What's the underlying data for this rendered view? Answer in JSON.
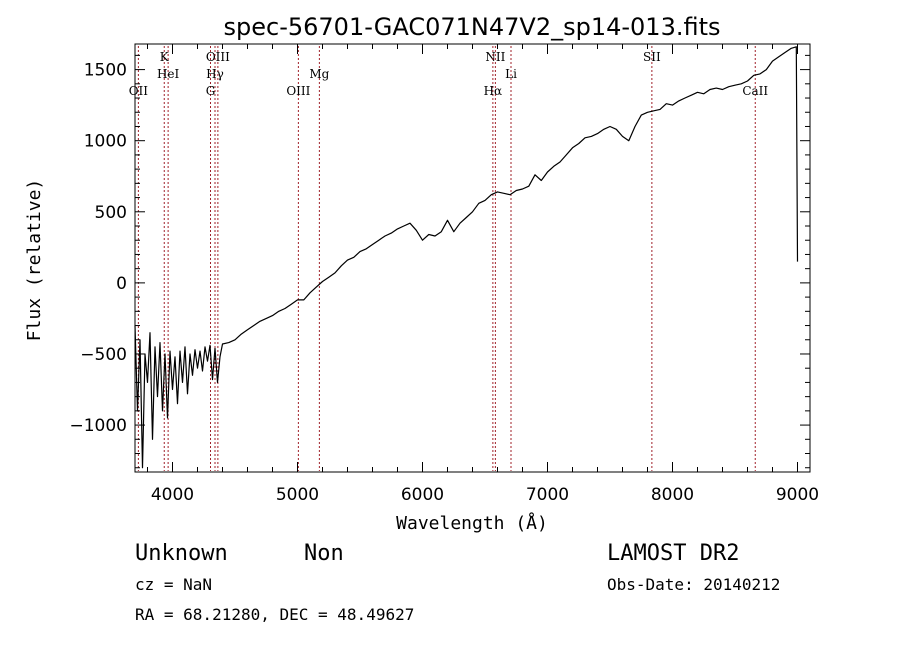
{
  "chart_data": {
    "type": "line",
    "title": "spec-56701-GAC071N47V2_sp14-013.fits",
    "xlabel": "Wavelength (Å)",
    "ylabel": "Flux (relative)",
    "xlim": [
      3700,
      9100
    ],
    "ylim": [
      -1330,
      1680
    ],
    "x_ticks": [
      4000,
      5000,
      6000,
      7000,
      8000,
      9000
    ],
    "y_ticks": [
      -1000,
      -500,
      0,
      500,
      1000,
      1500
    ],
    "x_tick_labels": [
      "4000",
      "5000",
      "6000",
      "7000",
      "8000",
      "9000"
    ],
    "y_tick_labels": [
      "−1000",
      "−500",
      "0",
      "500",
      "1000",
      "1500"
    ],
    "line_color": "#000000",
    "marker_color": "#a0202a",
    "spectral_lines": [
      {
        "label": "OII",
        "x": 3727,
        "row": 3
      },
      {
        "label": "K",
        "x": 3934,
        "row": 1
      },
      {
        "label": "HeI",
        "x": 3965,
        "row": 2
      },
      {
        "label": "OIII",
        "x": 4363,
        "row": 1
      },
      {
        "label": "Hγ",
        "x": 4340,
        "row": 2
      },
      {
        "label": "G",
        "x": 4304,
        "row": 3
      },
      {
        "label": "OIII",
        "x": 5007,
        "row": 3
      },
      {
        "label": "Mg",
        "x": 5175,
        "row": 2
      },
      {
        "label": "NII",
        "x": 6583,
        "row": 1
      },
      {
        "label": "Hα",
        "x": 6563,
        "row": 3
      },
      {
        "label": "Li",
        "x": 6708,
        "row": 2
      },
      {
        "label": "SII",
        "x": 7835,
        "row": 1
      },
      {
        "label": "CaII",
        "x": 8662,
        "row": 3
      }
    ],
    "series": [
      {
        "x": [
          3700,
          3720,
          3740,
          3760,
          3780,
          3800,
          3820,
          3840,
          3860,
          3880,
          3900,
          3920,
          3940,
          3960,
          3980,
          4000,
          4020,
          4040,
          4060,
          4080,
          4100,
          4120,
          4140,
          4160,
          4180,
          4200,
          4220,
          4240,
          4260,
          4280,
          4300,
          4320,
          4340,
          4360,
          4380,
          4400,
          4450,
          4500,
          4550,
          4600,
          4650,
          4700,
          4750,
          4800,
          4850,
          4900,
          4950,
          5000,
          5050,
          5100,
          5150,
          5200,
          5250,
          5300,
          5350,
          5400,
          5450,
          5500,
          5550,
          5600,
          5650,
          5700,
          5750,
          5800,
          5850,
          5900,
          5950,
          6000,
          6050,
          6100,
          6150,
          6200,
          6250,
          6300,
          6350,
          6400,
          6450,
          6500,
          6550,
          6600,
          6650,
          6700,
          6750,
          6800,
          6850,
          6900,
          6950,
          7000,
          7050,
          7100,
          7150,
          7200,
          7250,
          7300,
          7350,
          7400,
          7450,
          7500,
          7550,
          7600,
          7650,
          7700,
          7750,
          7800,
          7850,
          7900,
          7950,
          8000,
          8050,
          8100,
          8150,
          8200,
          8250,
          8300,
          8350,
          8400,
          8450,
          8500,
          8550,
          8600,
          8650,
          8700,
          8750,
          8800,
          8850,
          8900,
          8950,
          8990,
          9000
        ],
        "values": [
          -300,
          -900,
          -400,
          -1300,
          -500,
          -700,
          -350,
          -1100,
          -450,
          -800,
          -420,
          -900,
          -500,
          -950,
          -480,
          -750,
          -520,
          -850,
          -480,
          -700,
          -450,
          -780,
          -500,
          -650,
          -470,
          -600,
          -480,
          -620,
          -450,
          -550,
          -440,
          -680,
          -460,
          -700,
          -520,
          -430,
          -420,
          -400,
          -360,
          -330,
          -300,
          -270,
          -250,
          -230,
          -200,
          -180,
          -150,
          -120,
          -120,
          -70,
          -30,
          10,
          40,
          70,
          120,
          160,
          180,
          220,
          240,
          270,
          300,
          330,
          350,
          380,
          400,
          420,
          370,
          300,
          340,
          330,
          360,
          440,
          360,
          420,
          460,
          500,
          560,
          580,
          620,
          640,
          630,
          620,
          650,
          660,
          680,
          760,
          720,
          780,
          820,
          850,
          900,
          950,
          980,
          1020,
          1030,
          1050,
          1080,
          1100,
          1080,
          1030,
          1000,
          1100,
          1180,
          1200,
          1210,
          1220,
          1260,
          1250,
          1280,
          1300,
          1320,
          1340,
          1330,
          1360,
          1370,
          1360,
          1380,
          1390,
          1400,
          1420,
          1460,
          1470,
          1500,
          1560,
          1590,
          1620,
          1650,
          1660,
          150
        ]
      }
    ]
  },
  "footer": {
    "object_class": "Unknown",
    "object_subclass": "Non",
    "cz": "cz = NaN",
    "coords": "RA =  68.21280, DEC =  48.49627",
    "survey": "LAMOST DR2",
    "obs_date": "Obs-Date: 20140212"
  }
}
